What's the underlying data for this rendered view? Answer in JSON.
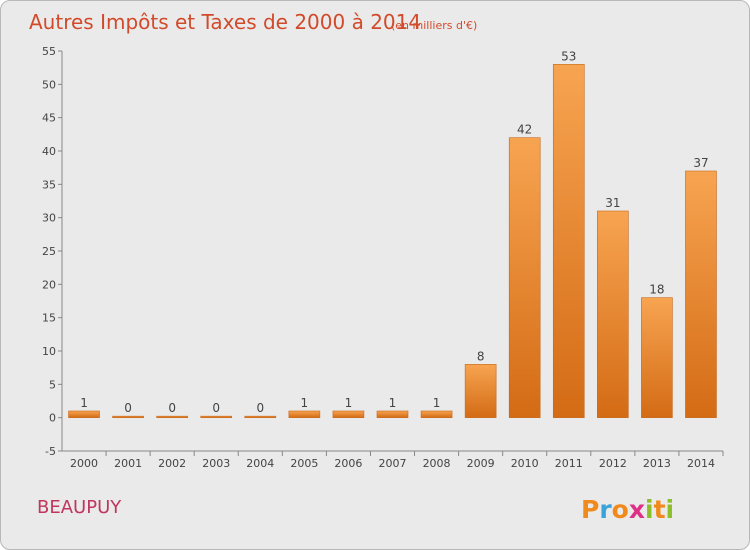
{
  "chart_data": {
    "type": "bar",
    "title": "Autres Impôts et Taxes de 2000 à 2014",
    "subtitle": "(en milliers d'€)",
    "categories": [
      "2000",
      "2001",
      "2002",
      "2003",
      "2004",
      "2005",
      "2006",
      "2007",
      "2008",
      "2009",
      "2010",
      "2011",
      "2012",
      "2013",
      "2014"
    ],
    "values": [
      1,
      0,
      0,
      0,
      0,
      1,
      1,
      1,
      1,
      8,
      42,
      53,
      31,
      18,
      37
    ],
    "ylim": [
      -5,
      55
    ],
    "yticks": [
      -5,
      0,
      5,
      10,
      15,
      20,
      25,
      30,
      35,
      40,
      45,
      50,
      55
    ],
    "grid": false,
    "bar_color": "#f08f2e"
  },
  "footer": {
    "place": "BEAUPUY",
    "brand_letters": [
      "P",
      "r",
      "o",
      "x",
      "i",
      "t",
      "i"
    ],
    "brand_colors": [
      "#f08a1c",
      "#3aa3da",
      "#f08a1c",
      "#e02f86",
      "#8cbf2a",
      "#f08a1c",
      "#8cbf2a"
    ]
  }
}
